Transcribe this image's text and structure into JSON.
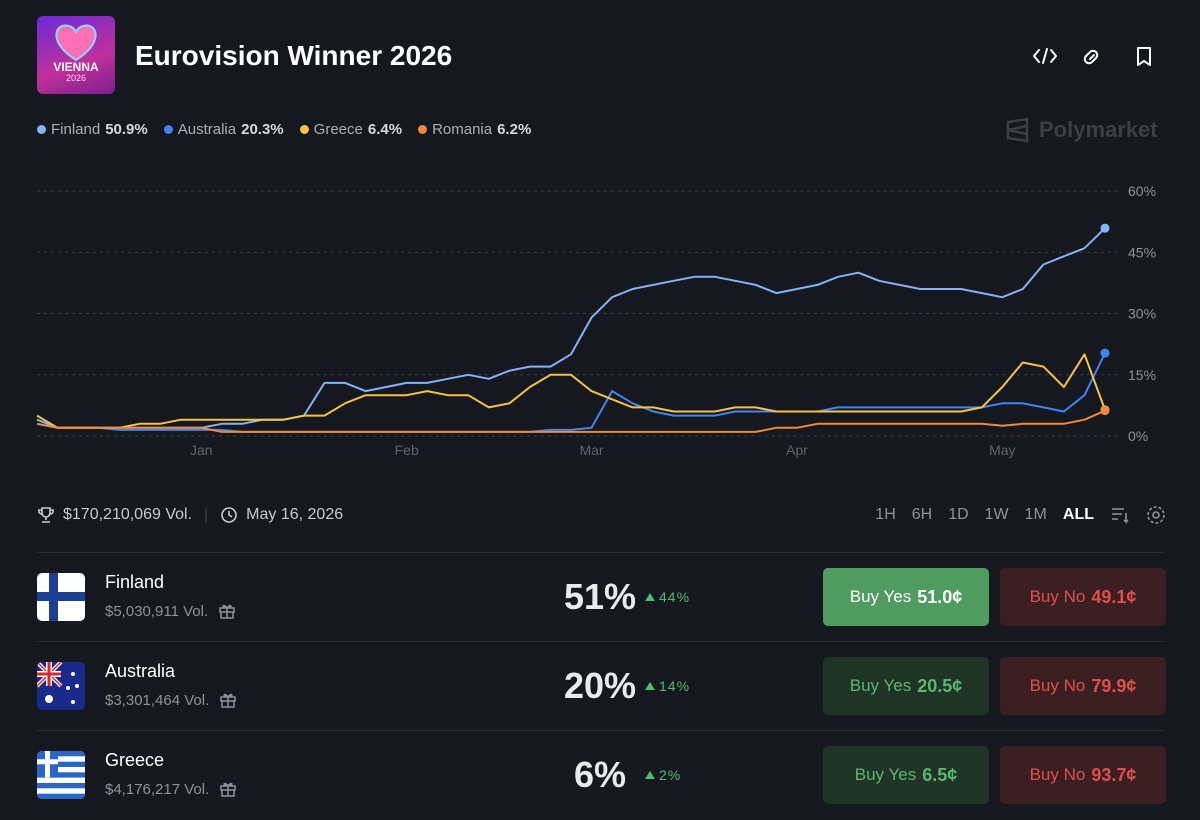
{
  "header": {
    "title": "Eurovision Winner 2026",
    "logo_line1": "VIENNA",
    "logo_line2": "2026",
    "brand": "Polymarket"
  },
  "chart_data": {
    "type": "line",
    "categories": [
      null,
      null,
      null,
      null,
      null,
      null,
      null,
      null,
      "Jan",
      null,
      null,
      null,
      null,
      null,
      null,
      null,
      null,
      null,
      "Feb",
      null,
      null,
      null,
      null,
      null,
      null,
      null,
      null,
      "Mar",
      null,
      null,
      null,
      null,
      null,
      null,
      null,
      null,
      null,
      "Apr",
      null,
      null,
      null,
      null,
      null,
      null,
      null,
      null,
      null,
      "May",
      null,
      null,
      null,
      null,
      null
    ],
    "series": [
      {
        "name": "Finland",
        "last_label": "50.9%",
        "color": "#86b3f7",
        "values": [
          4,
          2,
          2,
          2,
          2,
          2,
          2,
          2,
          2,
          3,
          3,
          4,
          4,
          5,
          13,
          13,
          11,
          12,
          13,
          13,
          14,
          15,
          14,
          16,
          17,
          17,
          20,
          29,
          34,
          36,
          37,
          38,
          39,
          39,
          38,
          37,
          35,
          36,
          37,
          39,
          40,
          38,
          37,
          36,
          36,
          36,
          35,
          34,
          36,
          42,
          44,
          46,
          50.9
        ]
      },
      {
        "name": "Australia",
        "last_label": "20.3%",
        "color": "#3f86f2",
        "values": [
          3,
          2,
          2,
          2,
          1.5,
          1.5,
          1.5,
          1.5,
          1.5,
          1.5,
          1,
          1,
          1,
          1,
          1,
          1,
          1,
          1,
          1,
          1,
          1,
          1,
          1,
          1,
          1,
          1.5,
          1.5,
          2,
          11,
          8,
          6,
          5,
          5,
          5,
          6,
          6,
          6,
          6,
          6,
          7,
          7,
          7,
          7,
          7,
          7,
          7,
          7,
          8,
          8,
          7,
          6,
          10,
          20.3
        ]
      },
      {
        "name": "Greece",
        "last_label": "6.4%",
        "color": "#f6c344",
        "values": [
          5,
          2,
          2,
          2,
          2,
          3,
          3,
          4,
          4,
          4,
          4,
          4,
          4,
          5,
          5,
          8,
          10,
          10,
          10,
          11,
          10,
          10,
          7,
          8,
          12,
          15,
          15,
          11,
          9,
          7,
          7,
          6,
          6,
          6,
          7,
          7,
          6,
          6,
          6,
          6,
          6,
          6,
          6,
          6,
          6,
          6,
          7,
          12,
          18,
          17,
          12,
          20,
          6.4
        ]
      },
      {
        "name": "Romania",
        "last_label": "6.2%",
        "color": "#f08a3a",
        "values": [
          3,
          2,
          2,
          2,
          2,
          2,
          2,
          2,
          2,
          1,
          1,
          1,
          1,
          1,
          1,
          1,
          1,
          1,
          1,
          1,
          1,
          1,
          1,
          1,
          1,
          1,
          1,
          1,
          1,
          1,
          1,
          1,
          1,
          1,
          1,
          1,
          2,
          2,
          3,
          3,
          3,
          3,
          3,
          3,
          3,
          3,
          3,
          2.5,
          3,
          3,
          3,
          4,
          6.2
        ]
      }
    ],
    "ylim": [
      0,
      60
    ],
    "yticks": [
      {
        "value": 0,
        "label": "0%"
      },
      {
        "value": 15,
        "label": "15%"
      },
      {
        "value": 30,
        "label": "30%"
      },
      {
        "value": 45,
        "label": "45%"
      },
      {
        "value": 60,
        "label": "60%"
      }
    ],
    "grid": true
  },
  "summary": {
    "volume": "$170,210,069 Vol.",
    "date": "May 16, 2026",
    "ranges": [
      "1H",
      "6H",
      "1D",
      "1W",
      "1M",
      "ALL"
    ],
    "active_range": "ALL"
  },
  "markets": [
    {
      "name": "Finland",
      "volume": "$5,030,911 Vol.",
      "chance": "51%",
      "change": "44%",
      "yes_label": "Buy Yes",
      "yes_price": "51.0¢",
      "no_label": "Buy No",
      "no_price": "49.1¢"
    },
    {
      "name": "Australia",
      "volume": "$3,301,464 Vol.",
      "chance": "20%",
      "change": "14%",
      "yes_label": "Buy Yes",
      "yes_price": "20.5¢",
      "no_label": "Buy No",
      "no_price": "79.9¢"
    },
    {
      "name": "Greece",
      "volume": "$4,176,217 Vol.",
      "chance": "6%",
      "change": "2%",
      "yes_label": "Buy Yes",
      "yes_price": "6.5¢",
      "no_label": "Buy No",
      "no_price": "93.7¢"
    }
  ]
}
